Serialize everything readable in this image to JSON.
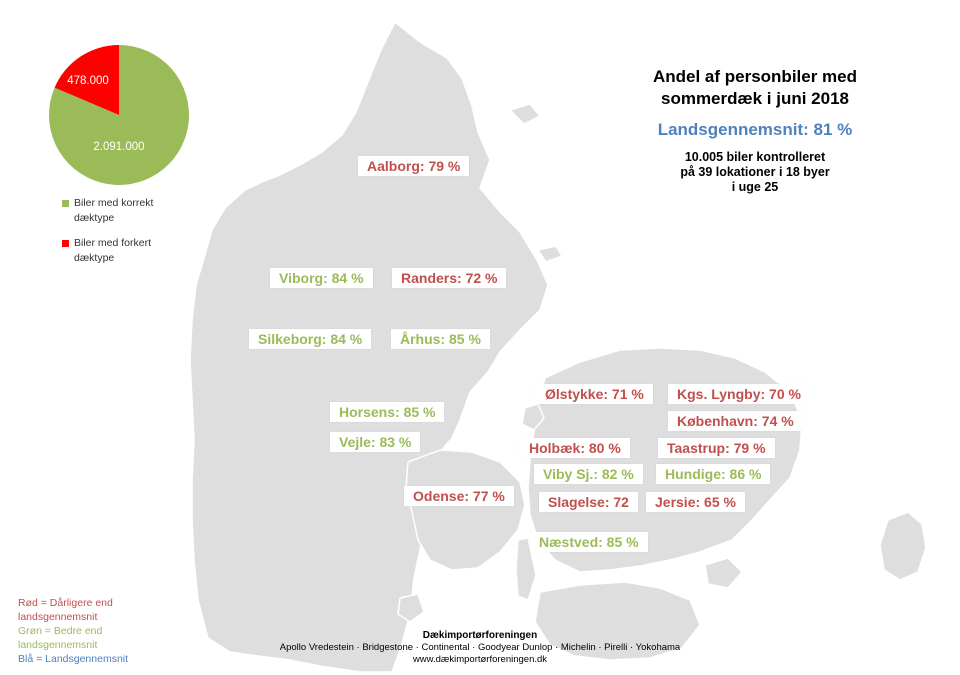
{
  "title_line1": "Andel af personbiler med",
  "title_line2": "sommerdæk i juni 2018",
  "national_average": "Landsgennemsnit: 81 %",
  "info_line1": "10.005 biler kontrolleret",
  "info_line2": "på 39 lokationer i 18 byer",
  "info_line3": "i uge 25",
  "colors": {
    "worse": "#c0504d",
    "better": "#9bbb59",
    "average": "#4f81bd",
    "land": "#dedede",
    "pie_green": "#9bbb59",
    "pie_red": "#ff0000"
  },
  "pie": {
    "slices": [
      {
        "label": "2.091.000",
        "value": 2091000,
        "color": "#9bbb59"
      },
      {
        "label": "478.000",
        "value": 478000,
        "color": "#ff0000"
      }
    ],
    "legend": [
      {
        "line1": "Biler med korrekt",
        "line2": "dæktype",
        "color": "#9bbb59"
      },
      {
        "line1": "Biler med forkert",
        "line2": "dæktype",
        "color": "#ff0000"
      }
    ]
  },
  "cities": [
    {
      "text": "Aalborg: 79 %",
      "status": "red"
    },
    {
      "text": "Viborg: 84 %",
      "status": "green"
    },
    {
      "text": "Randers: 72 %",
      "status": "red"
    },
    {
      "text": "Silkeborg: 84 %",
      "status": "green"
    },
    {
      "text": "Århus: 85 %",
      "status": "green"
    },
    {
      "text": "Horsens: 85 %",
      "status": "green"
    },
    {
      "text": "Vejle: 83 %",
      "status": "green"
    },
    {
      "text": "Odense: 77 %",
      "status": "red"
    },
    {
      "text": "Ølstykke: 71 %",
      "status": "red"
    },
    {
      "text": "Kgs. Lyngby: 70 %",
      "status": "red"
    },
    {
      "text": "København: 74 %",
      "status": "red"
    },
    {
      "text": "Holbæk: 80 %",
      "status": "red"
    },
    {
      "text": "Taastrup: 79 %",
      "status": "red"
    },
    {
      "text": "Viby Sj.: 82 %",
      "status": "green"
    },
    {
      "text": "Hundige: 86 %",
      "status": "green"
    },
    {
      "text": "Slagelse: 72",
      "status": "red"
    },
    {
      "text": "Jersie: 65 %",
      "status": "red"
    },
    {
      "text": "Næstved: 85 %",
      "status": "green"
    }
  ],
  "key": {
    "red": "Rød = Dårligere end landsgennemsnit",
    "green": "Grøn = Bedre end landsgennemsnit",
    "blue": "Blå = Landsgennemsnit"
  },
  "footer": {
    "org": "Dækimportørforeningen",
    "brands": "Apollo Vredestein · Bridgestone · Continental · Goodyear Dunlop · Michelin · Pirelli · Yokohama",
    "url": "www.dækimportørforeningen.dk"
  }
}
